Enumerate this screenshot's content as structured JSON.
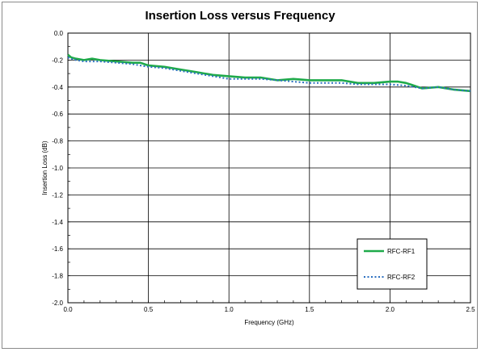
{
  "chart_data": {
    "type": "line",
    "title": "Insertion Loss versus Frequency",
    "xlabel": "Frequency (GHz)",
    "ylabel": "Insertion Loss (dB)",
    "xlim": [
      0.0,
      2.5
    ],
    "ylim": [
      -2.0,
      0.0
    ],
    "x_ticks": [
      "0.0",
      "0.5",
      "1.0",
      "1.5",
      "2.0",
      "2.5"
    ],
    "y_ticks": [
      "0.0",
      "-0.2",
      "-0.4",
      "-0.6",
      "-0.8",
      "-1.0",
      "-1.2",
      "-1.4",
      "-1.6",
      "-1.8",
      "-2.0"
    ],
    "grid": true,
    "legend_position": "bottom-right",
    "series": [
      {
        "name": "RFC-RF1",
        "color": "#1faa4a",
        "style": "solid",
        "x": [
          0.0,
          0.02,
          0.05,
          0.1,
          0.15,
          0.2,
          0.3,
          0.4,
          0.45,
          0.5,
          0.6,
          0.7,
          0.8,
          0.9,
          1.0,
          1.1,
          1.2,
          1.3,
          1.4,
          1.5,
          1.6,
          1.7,
          1.8,
          1.9,
          2.0,
          2.05,
          2.1,
          2.15,
          2.2,
          2.3,
          2.4,
          2.5
        ],
        "y": [
          -0.16,
          -0.18,
          -0.19,
          -0.2,
          -0.19,
          -0.2,
          -0.21,
          -0.22,
          -0.22,
          -0.24,
          -0.25,
          -0.27,
          -0.29,
          -0.31,
          -0.32,
          -0.33,
          -0.33,
          -0.35,
          -0.34,
          -0.35,
          -0.35,
          -0.35,
          -0.37,
          -0.37,
          -0.36,
          -0.36,
          -0.37,
          -0.39,
          -0.41,
          -0.4,
          -0.42,
          -0.43
        ]
      },
      {
        "name": "RFC-RF2",
        "color": "#2b6fc0",
        "style": "dotted",
        "x": [
          0.0,
          0.02,
          0.05,
          0.1,
          0.2,
          0.3,
          0.4,
          0.5,
          0.6,
          0.7,
          0.8,
          0.9,
          1.0,
          1.1,
          1.2,
          1.3,
          1.4,
          1.5,
          1.6,
          1.7,
          1.8,
          1.9,
          2.0,
          2.1,
          2.2,
          2.3,
          2.4,
          2.5
        ],
        "y": [
          -0.18,
          -0.19,
          -0.2,
          -0.21,
          -0.21,
          -0.22,
          -0.23,
          -0.25,
          -0.26,
          -0.28,
          -0.3,
          -0.32,
          -0.34,
          -0.34,
          -0.34,
          -0.35,
          -0.36,
          -0.37,
          -0.37,
          -0.37,
          -0.38,
          -0.38,
          -0.38,
          -0.39,
          -0.41,
          -0.4,
          -0.42,
          -0.43
        ]
      }
    ]
  }
}
